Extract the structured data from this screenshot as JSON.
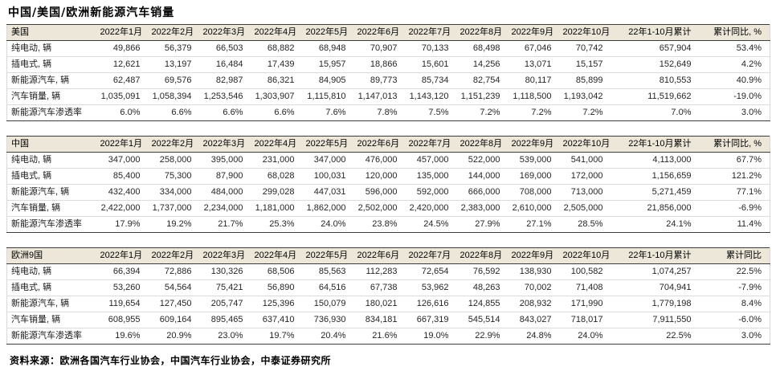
{
  "title": "中国/美国/欧洲新能源汽车销量",
  "source_note": "资料来源：欧洲各国汽车行业协会，中国汽车行业协会，中泰证券研究所",
  "colors": {
    "header_bg": "#ece7d8",
    "dark_border": "#3c3c3c",
    "row_line": "#dcdcdc",
    "text": "#262626"
  },
  "tables": [
    {
      "region": "美国",
      "columns": [
        "2022年1月",
        "2022年2月",
        "2022年3月",
        "2022年4月",
        "2022年5月",
        "2022年6月",
        "2022年7月",
        "2022年8月",
        "2022年9月",
        "2022年10月",
        "22年1-10月累计",
        "累计同比, %"
      ],
      "rows": [
        {
          "label": "纯电动, 辆",
          "values": [
            "49,866",
            "56,379",
            "66,503",
            "68,882",
            "68,948",
            "70,907",
            "70,133",
            "68,498",
            "67,046",
            "70,742",
            "657,904",
            "53.4%"
          ]
        },
        {
          "label": "插电式, 辆",
          "values": [
            "12,621",
            "13,197",
            "16,484",
            "17,439",
            "15,957",
            "18,866",
            "15,601",
            "14,256",
            "13,071",
            "15,157",
            "152,649",
            "4.2%"
          ]
        },
        {
          "label": "新能源汽车, 辆",
          "values": [
            "62,487",
            "69,576",
            "82,987",
            "86,321",
            "84,905",
            "89,773",
            "85,734",
            "82,754",
            "80,117",
            "85,899",
            "810,553",
            "40.9%"
          ]
        },
        {
          "label": "汽车销量, 辆",
          "values": [
            "1,035,091",
            "1,058,394",
            "1,253,546",
            "1,303,907",
            "1,115,810",
            "1,147,013",
            "1,143,120",
            "1,151,239",
            "1,118,500",
            "1,193,042",
            "11,519,662",
            "-19.0%"
          ]
        },
        {
          "label": "新能源汽车渗透率",
          "values": [
            "6.0%",
            "6.6%",
            "6.6%",
            "6.6%",
            "7.6%",
            "7.8%",
            "7.5%",
            "7.2%",
            "7.2%",
            "7.2%",
            "7.0%",
            "3.0%"
          ]
        }
      ]
    },
    {
      "region": "中国",
      "columns": [
        "2022年1月",
        "2022年2月",
        "2022年3月",
        "2022年4月",
        "2022年5月",
        "2022年6月",
        "2022年7月",
        "2022年8月",
        "2022年9月",
        "2022年10月",
        "22年1-10月累计",
        "累计同比, %"
      ],
      "rows": [
        {
          "label": "纯电动, 辆",
          "values": [
            "347,000",
            "258,000",
            "395,000",
            "231,000",
            "347,000",
            "476,000",
            "457,000",
            "522,000",
            "539,000",
            "541,000",
            "4,113,000",
            "67.7%"
          ]
        },
        {
          "label": "插电式, 辆",
          "values": [
            "85,400",
            "75,300",
            "87,900",
            "68,028",
            "100,031",
            "120,000",
            "135,000",
            "144,000",
            "169,000",
            "172,000",
            "1,156,659",
            "121.2%"
          ]
        },
        {
          "label": "新能源汽车, 辆",
          "values": [
            "432,400",
            "334,000",
            "484,000",
            "299,028",
            "447,031",
            "596,000",
            "592,000",
            "666,000",
            "708,000",
            "713,000",
            "5,271,459",
            "77.1%"
          ]
        },
        {
          "label": "汽车销量, 辆",
          "values": [
            "2,422,000",
            "1,737,000",
            "2,234,000",
            "1,181,000",
            "1,862,000",
            "2,502,000",
            "2,420,000",
            "2,383,000",
            "2,610,000",
            "2,505,000",
            "21,856,000",
            "-6.9%"
          ]
        },
        {
          "label": "新能源汽车渗透率",
          "values": [
            "17.9%",
            "19.2%",
            "21.7%",
            "25.3%",
            "24.0%",
            "23.8%",
            "24.5%",
            "27.9%",
            "27.1%",
            "28.5%",
            "24.1%",
            "11.4%"
          ]
        }
      ]
    },
    {
      "region": "欧洲9国",
      "columns": [
        "2022年1月",
        "2022年2月",
        "2022年3月",
        "2022年4月",
        "2022年5月",
        "2022年6月",
        "2022年7月",
        "2022年8月",
        "2022年9月",
        "2022年10月",
        "22年1-10月累计",
        "累计同比"
      ],
      "rows": [
        {
          "label": "纯电动, 辆",
          "values": [
            "66,394",
            "72,886",
            "130,326",
            "68,506",
            "85,563",
            "112,283",
            "72,654",
            "76,592",
            "138,930",
            "100,582",
            "1,074,257",
            "22.5%"
          ]
        },
        {
          "label": "插电式, 辆",
          "values": [
            "53,260",
            "54,564",
            "75,421",
            "56,890",
            "64,516",
            "67,738",
            "53,962",
            "48,263",
            "70,002",
            "71,408",
            "704,941",
            "-7.9%"
          ]
        },
        {
          "label": "新能源汽车, 辆",
          "values": [
            "119,654",
            "127,450",
            "205,747",
            "125,396",
            "150,079",
            "180,021",
            "126,616",
            "124,855",
            "208,932",
            "171,990",
            "1,779,198",
            "8.4%"
          ]
        },
        {
          "label": "汽车销量, 辆",
          "values": [
            "608,955",
            "609,164",
            "895,465",
            "637,410",
            "736,930",
            "834,181",
            "667,319",
            "545,514",
            "843,027",
            "718,017",
            "7,911,550",
            "-6.0%"
          ]
        },
        {
          "label": "新能源汽车渗透率",
          "values": [
            "19.6%",
            "20.9%",
            "23.0%",
            "19.7%",
            "20.4%",
            "21.6%",
            "19.0%",
            "22.9%",
            "24.8%",
            "24.0%",
            "22.5%",
            "3.0%"
          ]
        }
      ]
    }
  ]
}
